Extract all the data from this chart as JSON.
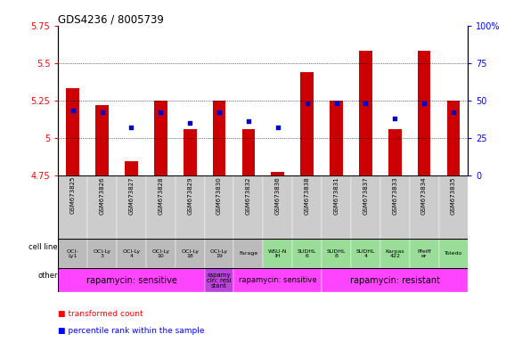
{
  "title": "GDS4236 / 8005739",
  "samples": [
    "GSM673825",
    "GSM673826",
    "GSM673827",
    "GSM673828",
    "GSM673829",
    "GSM673830",
    "GSM673832",
    "GSM673836",
    "GSM673838",
    "GSM673831",
    "GSM673837",
    "GSM673833",
    "GSM673834",
    "GSM673835"
  ],
  "bar_values": [
    5.33,
    5.22,
    4.84,
    5.25,
    5.06,
    5.25,
    5.06,
    4.77,
    5.44,
    5.25,
    5.58,
    5.06,
    5.58,
    5.25
  ],
  "dot_values": [
    43,
    42,
    32,
    42,
    35,
    42,
    36,
    32,
    48,
    48,
    48,
    38,
    48,
    42
  ],
  "bar_bottom": 4.75,
  "ylim_left": [
    4.75,
    5.75
  ],
  "ylim_right": [
    0,
    100
  ],
  "yticks_left": [
    4.75,
    5.0,
    5.25,
    5.5,
    5.75
  ],
  "yticks_right": [
    0,
    25,
    50,
    75,
    100
  ],
  "ytick_labels_left": [
    "4.75",
    "5",
    "5.25",
    "5.5",
    "5.75"
  ],
  "ytick_labels_right": [
    "0",
    "25",
    "50",
    "75",
    "100%"
  ],
  "bar_color": "#cc0000",
  "dot_color": "#0000cc",
  "gridline_ticks": [
    5.0,
    5.25,
    5.5
  ],
  "cell_lines": [
    "OCI-\nLy1",
    "OCI-Ly\n3",
    "OCI-Ly\n4",
    "OCI-Ly\n10",
    "OCI-Ly\n18",
    "OCI-Ly\n19",
    "Farage",
    "WSU-N\nIH",
    "SUDHL\n6",
    "SUDHL\n8",
    "SUDHL\n4",
    "Karpas\n422",
    "Pfeiff\ner",
    "Toledo"
  ],
  "cell_line_colors": [
    "#bbbbbb",
    "#bbbbbb",
    "#bbbbbb",
    "#bbbbbb",
    "#bbbbbb",
    "#bbbbbb",
    "#bbbbbb",
    "#99dd99",
    "#99dd99",
    "#99dd99",
    "#99dd99",
    "#99dd99",
    "#99dd99",
    "#99dd99"
  ],
  "other_groups": [
    {
      "label": "rapamycin: sensitive",
      "start": 0,
      "end": 5,
      "color": "#ff44ff",
      "fontsize": 7
    },
    {
      "label": "rapamy\ncin: resi\nstant",
      "start": 5,
      "end": 6,
      "color": "#bb44dd",
      "fontsize": 5
    },
    {
      "label": "rapamycin: sensitive",
      "start": 6,
      "end": 9,
      "color": "#ff44ff",
      "fontsize": 6
    },
    {
      "label": "rapamycin: resistant",
      "start": 9,
      "end": 14,
      "color": "#ff44ff",
      "fontsize": 7
    }
  ]
}
